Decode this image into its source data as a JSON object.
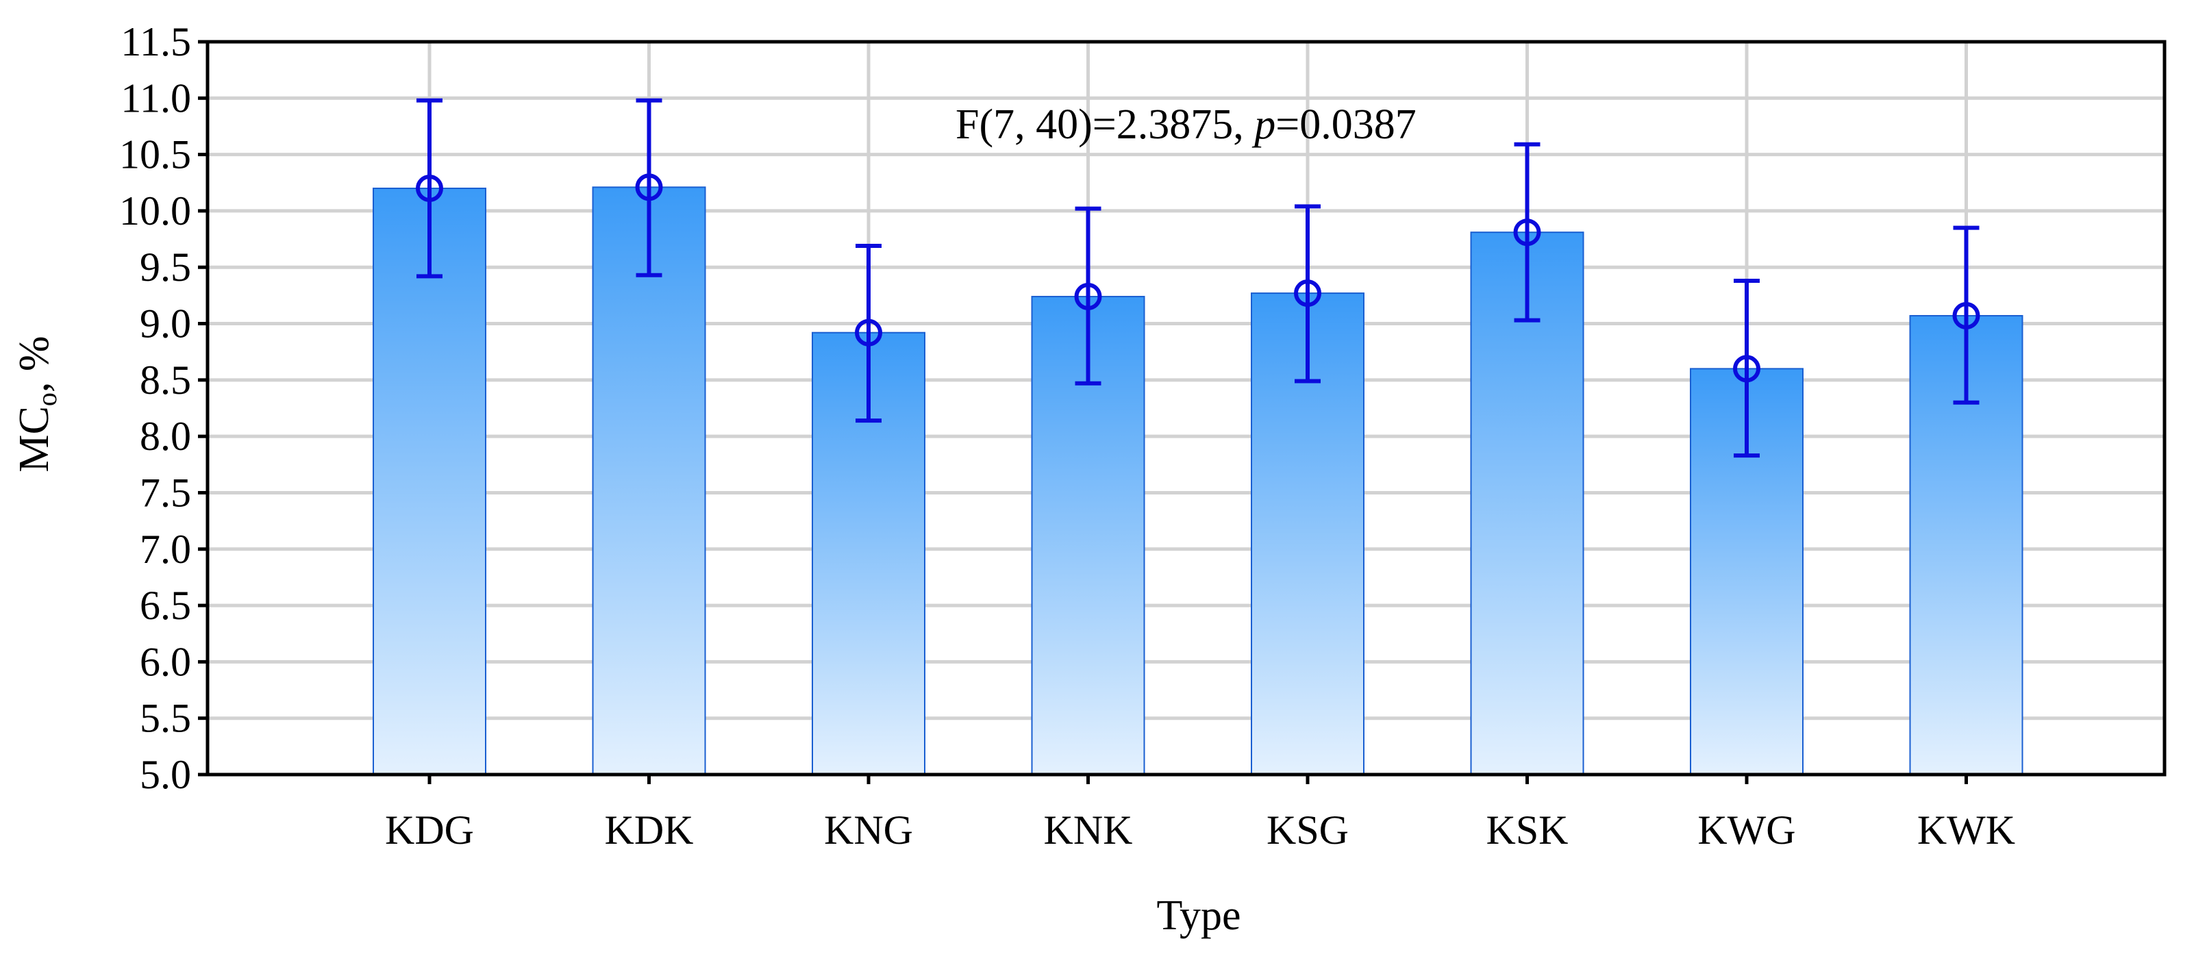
{
  "chart_data": {
    "type": "bar",
    "title": "",
    "xlabel": "Type",
    "ylabel_main": "MC",
    "ylabel_sub": "o",
    "ylabel_suffix": ", %",
    "ylim": [
      5.0,
      11.5
    ],
    "yticks": [
      "5.0",
      "5.5",
      "6.0",
      "6.5",
      "7.0",
      "7.5",
      "8.0",
      "8.5",
      "9.0",
      "9.5",
      "10.0",
      "10.5",
      "11.0",
      "11.5"
    ],
    "categories": [
      "KDG",
      "KDK",
      "KNG",
      "KNK",
      "KSG",
      "KSK",
      "KWG",
      "KWK"
    ],
    "values": [
      10.2,
      10.21,
      8.92,
      9.24,
      9.27,
      9.81,
      8.6,
      9.07
    ],
    "error_low": [
      9.42,
      9.43,
      8.14,
      8.47,
      8.49,
      9.03,
      7.83,
      8.3
    ],
    "error_high": [
      10.98,
      10.98,
      9.69,
      10.02,
      10.04,
      10.59,
      9.38,
      9.85
    ],
    "grid": true,
    "annotation": {
      "prefix": "F(7, 40)=2.3875, ",
      "p_symbol": "p",
      "suffix": "=0.0387"
    },
    "colors": {
      "bar_top": "#3a9af7",
      "bar_bottom": "#e4f1fe",
      "bar_edge": "#1a5fd1",
      "error": "#0b0bdc"
    }
  }
}
